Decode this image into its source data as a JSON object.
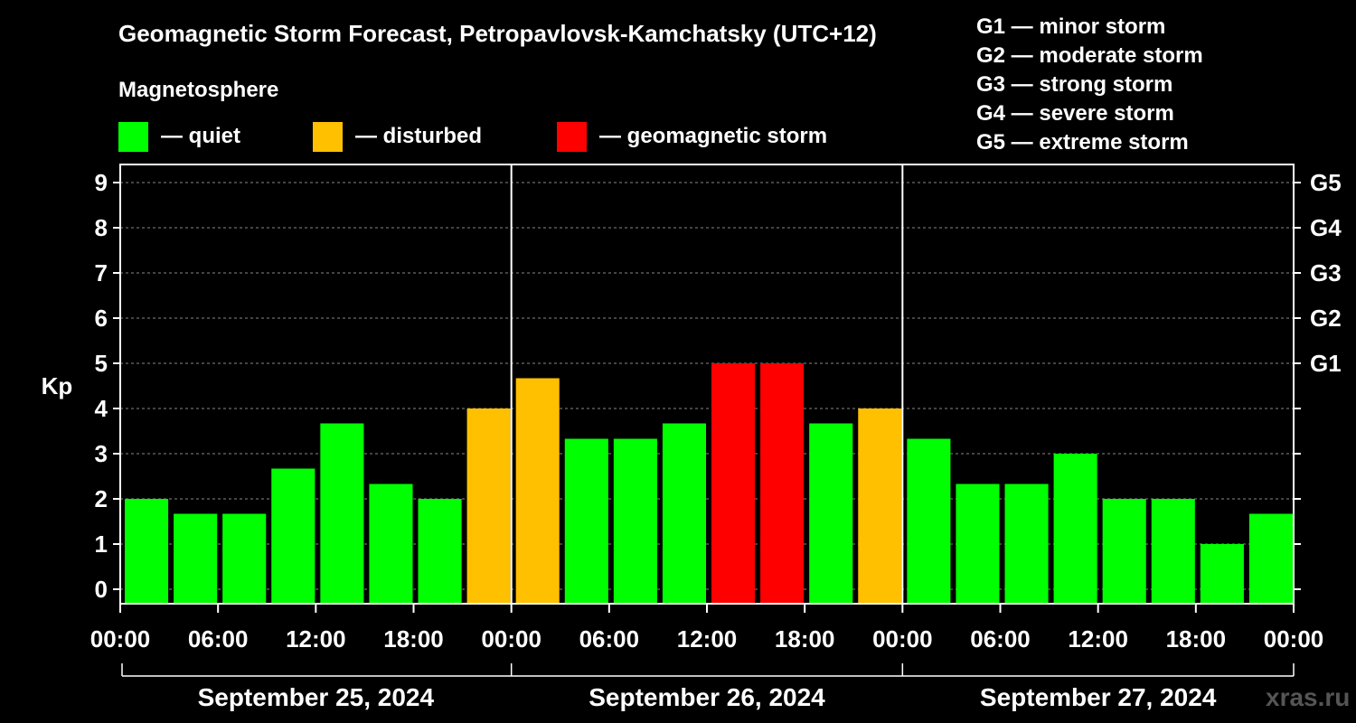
{
  "chart_data": {
    "type": "bar",
    "title": "Geomagnetic Storm Forecast, Petropavlovsk-Kamchatsky (UTC+12)",
    "ylabel": "Kp",
    "ylim": [
      0,
      9
    ],
    "yticks": [
      "0",
      "1",
      "2",
      "3",
      "4",
      "5",
      "6",
      "7",
      "8",
      "9"
    ],
    "right_axis_labels": [
      {
        "kp": 5,
        "label": "G1"
      },
      {
        "kp": 6,
        "label": "G2"
      },
      {
        "kp": 7,
        "label": "G3"
      },
      {
        "kp": 8,
        "label": "G4"
      },
      {
        "kp": 9,
        "label": "G5"
      }
    ],
    "xtick_labels": [
      "00:00",
      "06:00",
      "12:00",
      "18:00",
      "00:00",
      "06:00",
      "12:00",
      "18:00",
      "00:00",
      "06:00",
      "12:00",
      "18:00",
      "00:00"
    ],
    "days": [
      "September 25, 2024",
      "September 26, 2024",
      "September 27, 2024"
    ],
    "values": [
      2,
      1.67,
      1.67,
      2.67,
      3.67,
      2.33,
      2,
      4,
      4.67,
      3.33,
      3.33,
      3.67,
      5,
      5,
      3.67,
      4,
      3.33,
      2.33,
      2.33,
      3,
      2,
      2,
      1,
      1.67
    ],
    "grid": "dashed horizontal at each integer Kp",
    "legend": {
      "title": "Magnetosphere",
      "items": [
        {
          "label": "— quiet",
          "color": "#00ff00"
        },
        {
          "label": "— disturbed",
          "color": "#ffc000"
        },
        {
          "label": "— geomagnetic storm",
          "color": "#ff0000"
        }
      ]
    },
    "storm_scale": [
      "G1 — minor storm",
      "G2 — moderate storm",
      "G3 — strong storm",
      "G4 — severe storm",
      "G5 — extreme storm"
    ]
  },
  "watermark": "xras.ru"
}
